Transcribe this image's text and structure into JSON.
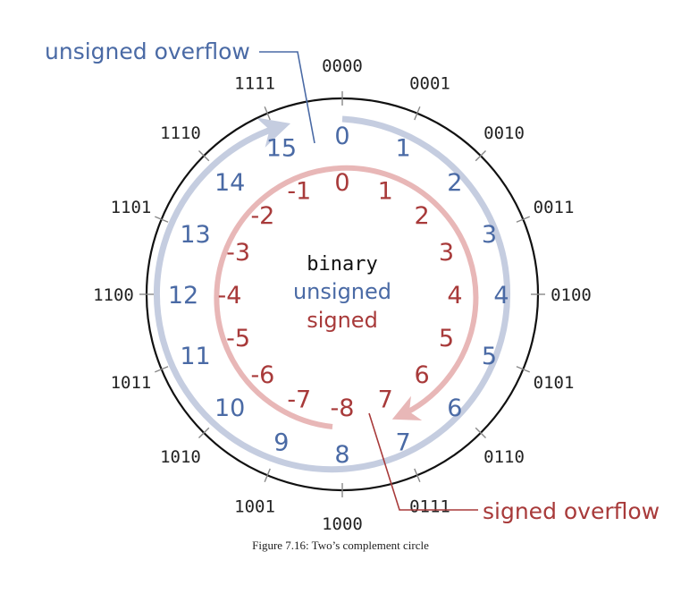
{
  "labels": {
    "unsigned_overflow": "unsigned overflow",
    "signed_overflow": "signed overflow",
    "legend_binary": "binary",
    "legend_unsigned": "unsigned",
    "legend_signed": "signed",
    "caption": "Figure 7.16: Two’s complement circle"
  },
  "sectors": [
    {
      "binary": "0000",
      "unsigned": "0",
      "signed": "0"
    },
    {
      "binary": "0001",
      "unsigned": "1",
      "signed": "1"
    },
    {
      "binary": "0010",
      "unsigned": "2",
      "signed": "2"
    },
    {
      "binary": "0011",
      "unsigned": "3",
      "signed": "3"
    },
    {
      "binary": "0100",
      "unsigned": "4",
      "signed": "4"
    },
    {
      "binary": "0101",
      "unsigned": "5",
      "signed": "5"
    },
    {
      "binary": "0110",
      "unsigned": "6",
      "signed": "6"
    },
    {
      "binary": "0111",
      "unsigned": "7",
      "signed": "7"
    },
    {
      "binary": "1000",
      "unsigned": "8",
      "signed": "-8"
    },
    {
      "binary": "1001",
      "unsigned": "9",
      "signed": "-7"
    },
    {
      "binary": "1010",
      "unsigned": "10",
      "signed": "-6"
    },
    {
      "binary": "1011",
      "unsigned": "11",
      "signed": "-5"
    },
    {
      "binary": "1100",
      "unsigned": "12",
      "signed": "-4"
    },
    {
      "binary": "1101",
      "unsigned": "13",
      "signed": "-3"
    },
    {
      "binary": "1110",
      "unsigned": "14",
      "signed": "-2"
    },
    {
      "binary": "1111",
      "unsigned": "15",
      "signed": "-1"
    }
  ],
  "colors": {
    "unsigned": "#4a6aa5",
    "signed": "#a83a3a",
    "unsigned_arc": "#c5cde0",
    "signed_arc": "#e8b7b7",
    "circle": "#111111"
  }
}
